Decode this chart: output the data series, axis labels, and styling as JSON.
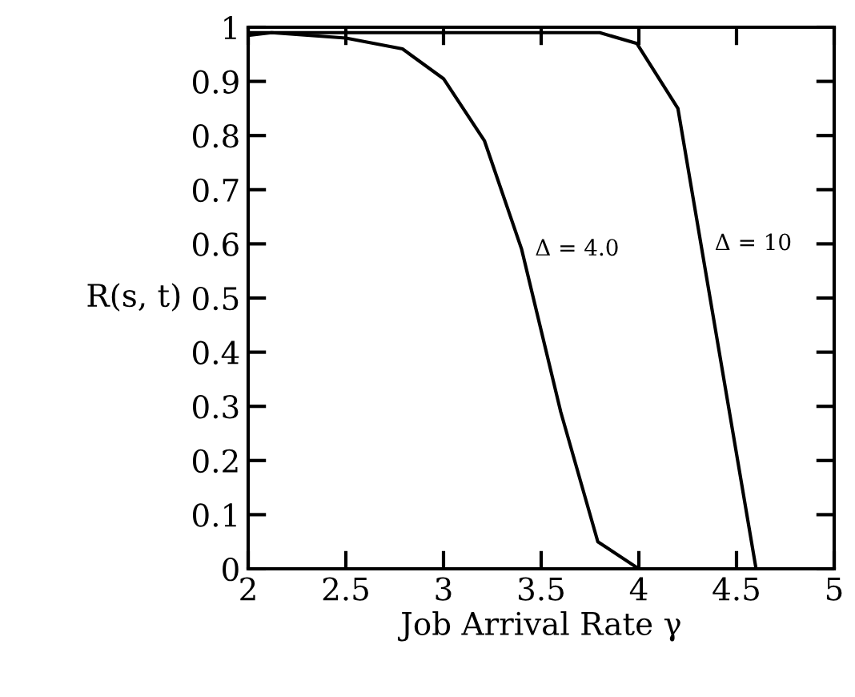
{
  "chart_data": {
    "type": "line",
    "xlabel": "Job Arrival Rate γ",
    "ylabel": "R(s, t)",
    "series": [
      {
        "color": "#000000",
        "x": [
          2.0,
          2.12,
          2.5,
          2.79,
          3.0,
          3.21,
          3.4,
          3.6,
          3.79,
          4.0
        ],
        "values": [
          0.985,
          0.99,
          0.98,
          0.96,
          0.905,
          0.79,
          0.59,
          0.29,
          0.05,
          0.0
        ]
      },
      {
        "color": "#000000",
        "x": [
          2.0,
          2.5,
          3.0,
          3.5,
          3.8,
          3.99,
          4.2,
          4.6
        ],
        "values": [
          0.99,
          0.99,
          0.99,
          0.99,
          0.99,
          0.97,
          0.85,
          0.0
        ]
      }
    ],
    "annotations": [
      {
        "text": "Δ = 4.0",
        "x": 3.4,
        "y": 0.59
      },
      {
        "text": "Δ = 10",
        "x": 4.32,
        "y": 0.6
      }
    ],
    "xlim": [
      2,
      5
    ],
    "ylim": [
      0,
      1
    ],
    "xticks": [
      2,
      2.5,
      3,
      3.5,
      4,
      4.5,
      5
    ],
    "yticks": [
      0,
      0.1,
      0.2,
      0.3,
      0.4,
      0.5,
      0.6,
      0.7,
      0.8,
      0.9,
      1
    ],
    "grid": false,
    "legend": false,
    "marker": "none",
    "line_style": "solid"
  }
}
